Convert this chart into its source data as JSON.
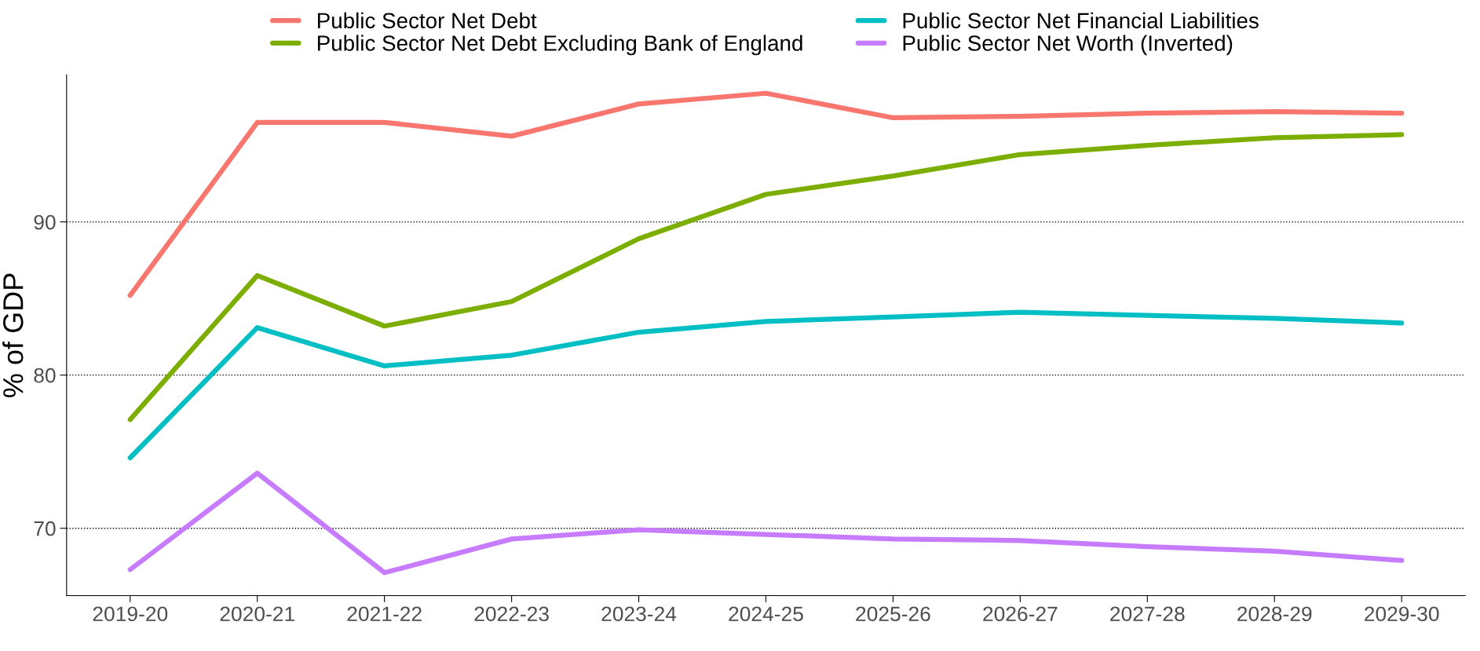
{
  "chart_data": {
    "type": "line",
    "ylabel": "% of GDP",
    "categories": [
      "2019-20",
      "2020-21",
      "2021-22",
      "2022-23",
      "2023-24",
      "2024-25",
      "2025-26",
      "2026-27",
      "2027-28",
      "2028-29",
      "2029-30"
    ],
    "series": [
      {
        "name": "Public Sector Net Debt",
        "color": "#f8766d",
        "values": [
          85.2,
          96.5,
          96.5,
          95.6,
          97.7,
          98.4,
          96.8,
          96.9,
          97.1,
          97.2,
          97.1
        ]
      },
      {
        "name": "Public Sector Net Debt Excluding Bank of England",
        "color": "#7cae00",
        "values": [
          77.1,
          86.5,
          83.2,
          84.8,
          88.9,
          91.8,
          93.0,
          94.4,
          95.0,
          95.5,
          95.7
        ]
      },
      {
        "name": "Public Sector Net Financial Liabilities",
        "color": "#00bfc4",
        "values": [
          74.6,
          83.1,
          80.6,
          81.3,
          82.8,
          83.5,
          83.8,
          84.1,
          83.9,
          83.7,
          83.4
        ]
      },
      {
        "name": "Public Sector Net Worth (Inverted)",
        "color": "#c77cff",
        "values": [
          67.3,
          73.6,
          67.1,
          69.3,
          69.9,
          69.6,
          69.3,
          69.2,
          68.8,
          68.5,
          67.9
        ]
      }
    ],
    "ylim": [
      65.6,
      99.6
    ],
    "yticks": [
      70,
      80,
      90
    ],
    "grid": "y",
    "legend": "top",
    "marker": "none",
    "line_style": "solid"
  }
}
